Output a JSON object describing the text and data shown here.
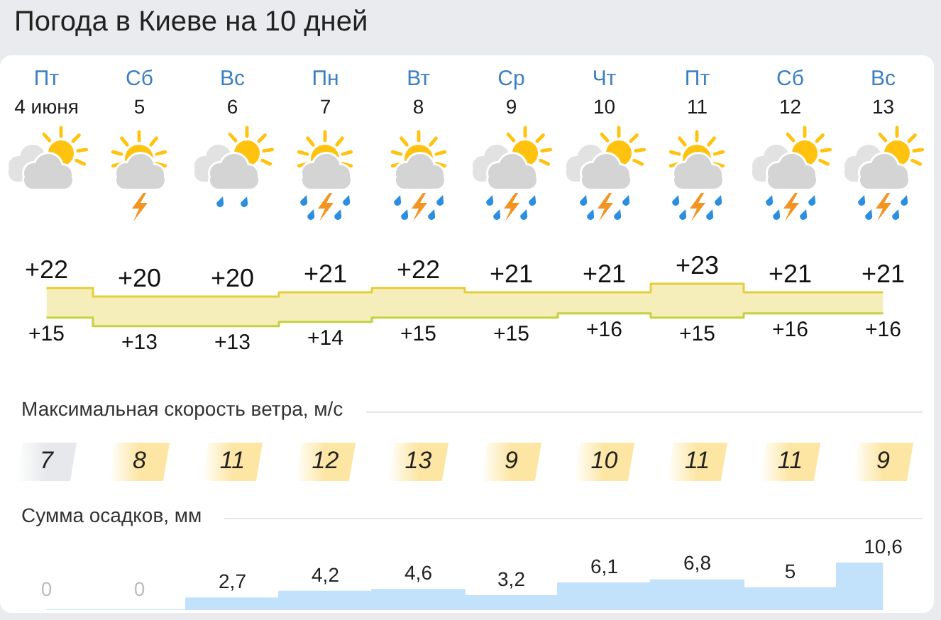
{
  "chart_data": [
    {
      "type": "step",
      "title": "Погода в Киеве на 10 дней",
      "categories": [
        "Пт\n4 июня",
        "Сб\n5",
        "Вс\n6",
        "Пн\n7",
        "Вт\n8",
        "Ср\n9",
        "Чт\n10",
        "Пт\n11",
        "Сб\n12",
        "Вс\n13"
      ],
      "series": [
        {
          "color": "#e6cd3a",
          "values": [
            22,
            20,
            20,
            21,
            22,
            21,
            21,
            23,
            21,
            21
          ],
          "value_labels": [
            "+22",
            "+20",
            "+20",
            "+21",
            "+22",
            "+21",
            "+21",
            "+23",
            "+21",
            "+21"
          ],
          "lower": [
            15,
            13,
            13,
            14,
            15,
            15,
            16,
            15,
            16,
            16
          ],
          "upper": [
            22,
            20,
            20,
            21,
            22,
            21,
            21,
            23,
            21,
            21
          ]
        },
        {
          "color": "#c3d13f",
          "values": [
            15,
            13,
            13,
            14,
            15,
            15,
            16,
            15,
            16,
            16
          ],
          "value_labels": [
            "+15",
            "+13",
            "+13",
            "+14",
            "+15",
            "+15",
            "+16",
            "+15",
            "+16",
            "+16"
          ]
        }
      ]
    },
    {
      "type": "heatmap",
      "title": "Максимальная скорость ветра, м/с",
      "categories": [
        null,
        null,
        null,
        null,
        null,
        null,
        null,
        null,
        null,
        null
      ],
      "y_categories": [
        null
      ],
      "cells": [
        [
          7,
          8,
          11,
          12,
          13,
          9,
          10,
          11,
          11,
          9
        ]
      ],
      "colors": [
        "#e6e8eb",
        "#fde6a3",
        "#fde6a3",
        "#fde6a3",
        "#fde6a3",
        "#fde6a3",
        "#fde6a3",
        "#fde6a3",
        "#fde6a3",
        "#fde6a3"
      ],
      "data_labels": true
    },
    {
      "type": "area",
      "title": "Сумма осадков, мм",
      "categories": [
        null,
        null,
        null,
        null,
        null,
        null,
        null,
        null,
        null,
        null
      ],
      "values": [
        0,
        0,
        2.7,
        4.2,
        4.6,
        3.2,
        6.1,
        6.8,
        5,
        10.6
      ],
      "value_labels": [
        "0",
        "0",
        "2,7",
        "4,2",
        "4,6",
        "3,2",
        "6,1",
        "6,8",
        "5",
        "10,6"
      ],
      "color": "#c2e2fb"
    }
  ]
}
